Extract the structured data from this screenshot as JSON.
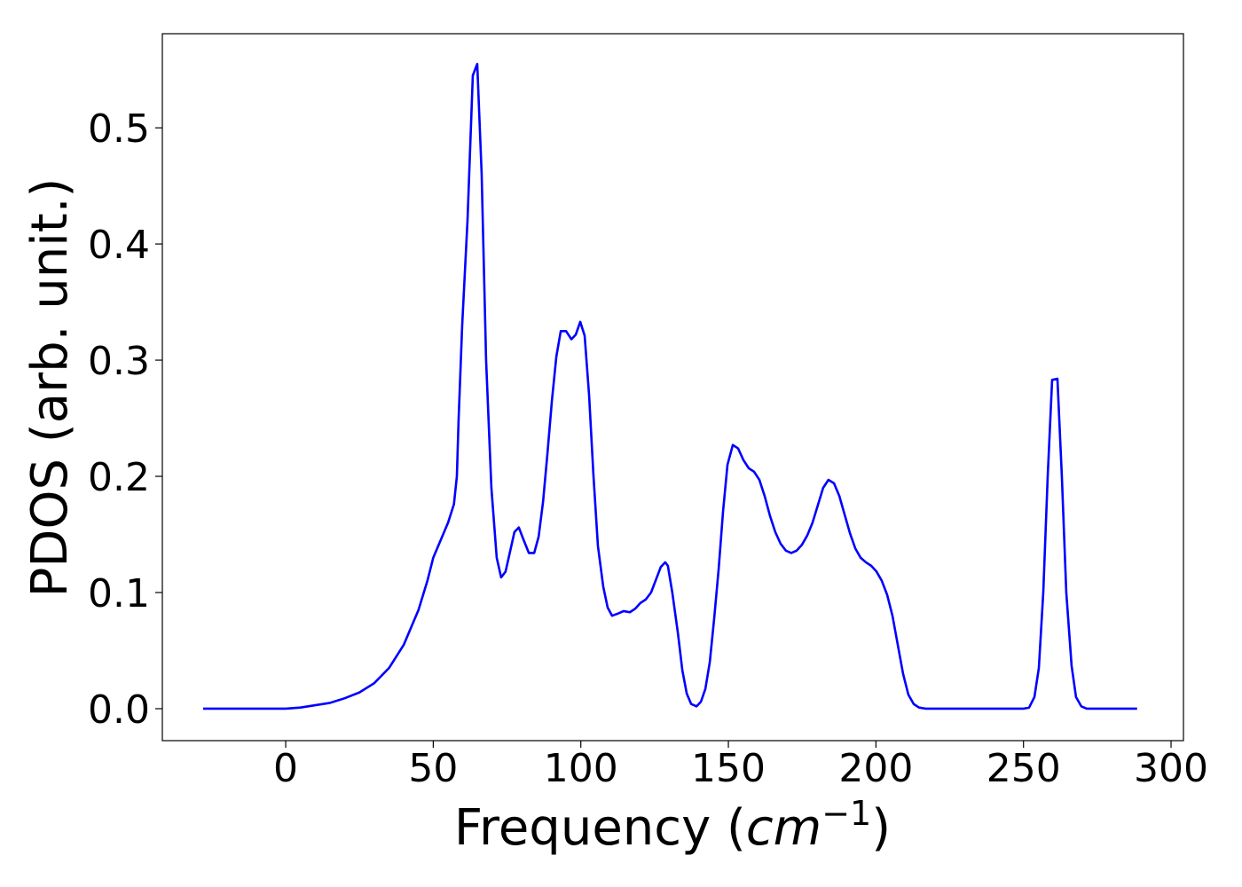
{
  "chart_data": {
    "type": "line",
    "ylabel": "PDOS (arb. unit.)",
    "xlabel": [
      "Frequency (",
      "cm",
      "−1",
      ")"
    ],
    "xlim": [
      -41.8,
      304.2
    ],
    "ylim": [
      -0.0275,
      0.581
    ],
    "xticks": [
      0,
      50,
      100,
      150,
      200,
      250,
      300
    ],
    "yticks": [
      {
        "value": 0,
        "label": "0.0"
      },
      0.1,
      0.2,
      0.3,
      0.4,
      0.5
    ],
    "x": [
      -28,
      -10,
      0,
      5,
      10,
      15,
      20,
      25,
      30,
      35,
      40,
      45,
      48,
      50,
      53,
      55,
      57,
      58,
      58.6,
      59.8,
      61.6,
      63.4,
      64.9,
      66.4,
      67.9,
      69.7,
      71.5,
      73.0,
      74.5,
      76.0,
      77.5,
      79.0,
      80.5,
      82.4,
      84.2,
      85.7,
      87.2,
      88.7,
      90.2,
      91.7,
      93.2,
      95.0,
      96.8,
      98.3,
      99.8,
      101.3,
      102.8,
      104.3,
      105.8,
      107.6,
      109.1,
      110.6,
      112.7,
      114.5,
      116.6,
      118.4,
      120.2,
      122.0,
      123.8,
      125.6,
      127.1,
      128.6,
      129.5,
      131.0,
      132.9,
      134.4,
      135.9,
      137.4,
      139.2,
      140.7,
      142.2,
      143.7,
      145.2,
      146.7,
      148.2,
      149.7,
      151.5,
      153.3,
      155.1,
      156.9,
      158.7,
      160.5,
      162.3,
      164.1,
      165.9,
      167.7,
      169.5,
      171.3,
      173.1,
      174.9,
      176.7,
      178.5,
      180.3,
      182.1,
      183.9,
      185.8,
      187.6,
      189.4,
      191.2,
      193.0,
      194.8,
      196.6,
      198.4,
      200.2,
      202.0,
      203.8,
      205.6,
      207.4,
      209.2,
      211.0,
      212.8,
      214.6,
      217,
      230,
      250,
      251.9,
      253.7,
      255.2,
      256.7,
      258.2,
      259.7,
      261.5,
      263.0,
      264.5,
      266.3,
      267.8,
      269.6,
      271.4,
      280,
      288.5
    ],
    "series": [
      {
        "color": "#0000ff",
        "values": [
          0,
          0,
          0,
          0.001,
          0.003,
          0.005,
          0.009,
          0.014,
          0.022,
          0.035,
          0.055,
          0.085,
          0.11,
          0.13,
          0.148,
          0.16,
          0.176,
          0.2,
          0.25,
          0.33,
          0.42,
          0.545,
          0.555,
          0.46,
          0.3,
          0.19,
          0.13,
          0.113,
          0.118,
          0.135,
          0.152,
          0.156,
          0.146,
          0.134,
          0.134,
          0.148,
          0.178,
          0.22,
          0.265,
          0.303,
          0.325,
          0.325,
          0.318,
          0.322,
          0.333,
          0.321,
          0.27,
          0.2,
          0.14,
          0.105,
          0.087,
          0.08,
          0.082,
          0.084,
          0.083,
          0.086,
          0.091,
          0.094,
          0.1,
          0.112,
          0.122,
          0.126,
          0.123,
          0.1,
          0.065,
          0.033,
          0.013,
          0.004,
          0.002,
          0.006,
          0.017,
          0.04,
          0.078,
          0.12,
          0.17,
          0.21,
          0.227,
          0.224,
          0.214,
          0.207,
          0.204,
          0.197,
          0.183,
          0.166,
          0.152,
          0.142,
          0.136,
          0.134,
          0.136,
          0.141,
          0.149,
          0.16,
          0.175,
          0.19,
          0.197,
          0.194,
          0.183,
          0.167,
          0.151,
          0.138,
          0.13,
          0.126,
          0.123,
          0.118,
          0.11,
          0.098,
          0.08,
          0.055,
          0.03,
          0.012,
          0.004,
          0.001,
          0,
          0,
          0,
          0.001,
          0.01,
          0.035,
          0.1,
          0.2,
          0.283,
          0.284,
          0.2,
          0.1,
          0.037,
          0.01,
          0.002,
          0,
          0,
          0
        ]
      }
    ]
  }
}
